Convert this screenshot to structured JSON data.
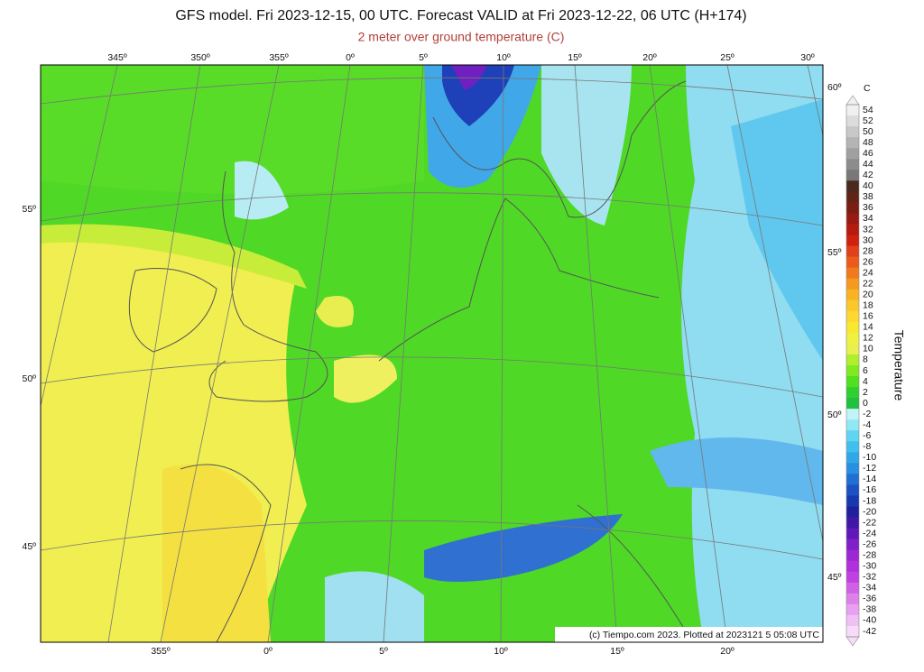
{
  "header": {
    "title": "GFS model. Fri 2023-12-15, 00 UTC. Forecast VALID at Fri 2023-12-22, 06 UTC (H+174)",
    "subtitle": "2 meter over ground temperature (C)"
  },
  "map": {
    "lon_labels_top": [
      "345º",
      "350º",
      "355º",
      "0º",
      "5º",
      "10º",
      "15º",
      "20º",
      "25º",
      "30º"
    ],
    "lon_labels_bottom": [
      "355º",
      "0º",
      "5º",
      "10º",
      "15º",
      "20º"
    ],
    "lat_labels_left": [
      "55º",
      "50º",
      "45º"
    ],
    "lat_labels_right": [
      "60º",
      "55º",
      "50º",
      "45º"
    ],
    "credit": "(c) Tiempo.com 2023. Plotted at 2023121 5 05:08 UTC"
  },
  "colorbar": {
    "unit": "C",
    "label": "Temperature",
    "values": [
      54,
      52,
      50,
      48,
      46,
      44,
      42,
      40,
      38,
      36,
      34,
      32,
      30,
      28,
      26,
      24,
      22,
      20,
      18,
      16,
      14,
      12,
      10,
      8,
      6,
      4,
      2,
      0,
      -2,
      -4,
      -6,
      -8,
      -10,
      -12,
      -14,
      -16,
      -18,
      -20,
      -22,
      -24,
      -26,
      -28,
      -30,
      -32,
      -34,
      -36,
      -38,
      -40,
      -42
    ],
    "colors": [
      "#f0f0f0",
      "#dcdcdc",
      "#c8c8c8",
      "#b4b4b4",
      "#a0a0a0",
      "#8c8c8c",
      "#787878",
      "#4a2a1e",
      "#5e2418",
      "#7a1e14",
      "#981a12",
      "#b41a10",
      "#d0200e",
      "#e0401a",
      "#ec5a1c",
      "#f07a1e",
      "#f59a20",
      "#f8b224",
      "#fac82a",
      "#fcd830",
      "#f8e830",
      "#f0f040",
      "#e8f050",
      "#b0ee2e",
      "#80ea20",
      "#50e020",
      "#30d030",
      "#20c040",
      "#c0f4f8",
      "#90e8f4",
      "#60d4f0",
      "#40c0ec",
      "#30a8e8",
      "#2890e0",
      "#2070d4",
      "#1c50c4",
      "#1838b0",
      "#20209c",
      "#4018a8",
      "#6018b8",
      "#8020c8",
      "#9c28d4",
      "#b030dc",
      "#c040e0",
      "#d060e4",
      "#dc80ea",
      "#e8a0f0",
      "#f0c0f4",
      "#f6dcf8"
    ]
  }
}
